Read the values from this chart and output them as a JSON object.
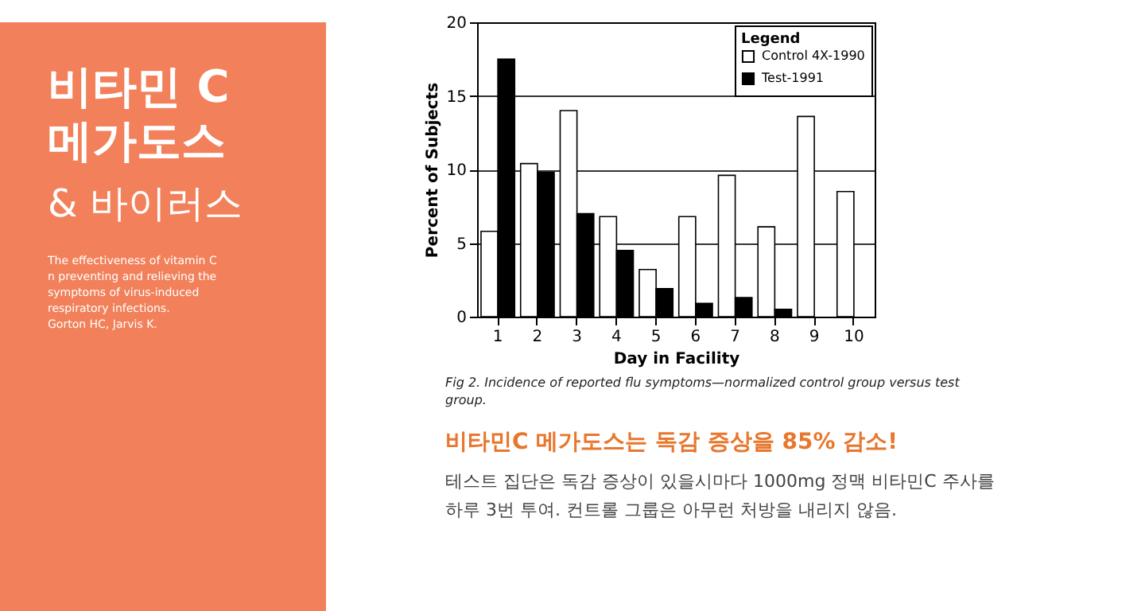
{
  "chart_data": {
    "type": "bar",
    "title": "비타민 C\n메가도스",
    "subtitle": "& 바이러스",
    "categories": [
      "1",
      "2",
      "3",
      "4",
      "5",
      "6",
      "7",
      "8",
      "9",
      "10"
    ],
    "series": [
      {
        "name": "Control 4X-1990",
        "color": "#ffffff",
        "values": [
          5.8,
          10.4,
          14.0,
          6.8,
          3.2,
          6.8,
          9.6,
          6.1,
          13.6,
          8.5
        ]
      },
      {
        "name": "Test-1991",
        "color": "#000000",
        "values": [
          17.5,
          9.8,
          7.0,
          4.5,
          1.9,
          0.9,
          1.3,
          0.5,
          null,
          null
        ]
      }
    ],
    "xlabel": "Day in Facility",
    "ylabel": "Percent of Subjects",
    "ylim": [
      0,
      20
    ],
    "yticks": [
      0,
      5,
      10,
      15,
      20
    ],
    "grid": "y",
    "legend": "top right",
    "legend_title": "Legend",
    "annotations": [
      "The effectiveness of vitamin C n preventing and relieving the symptoms of virus-induced respiratory infections.",
      "Gorton HC, Jarvis K.",
      "Fig 2. Incidence of reported flu symptoms—normalized control group versus test group.",
      "비타민C 메가도스는 독감 증상을 85% 감소!",
      "테스트 집단은  독감 증상이 있을시마다 1000mg 정맥 비타민C 주사를 하루 3번 투여. 컨트롤 그룹은 아무런 처방을 내리지 않음."
    ]
  }
}
